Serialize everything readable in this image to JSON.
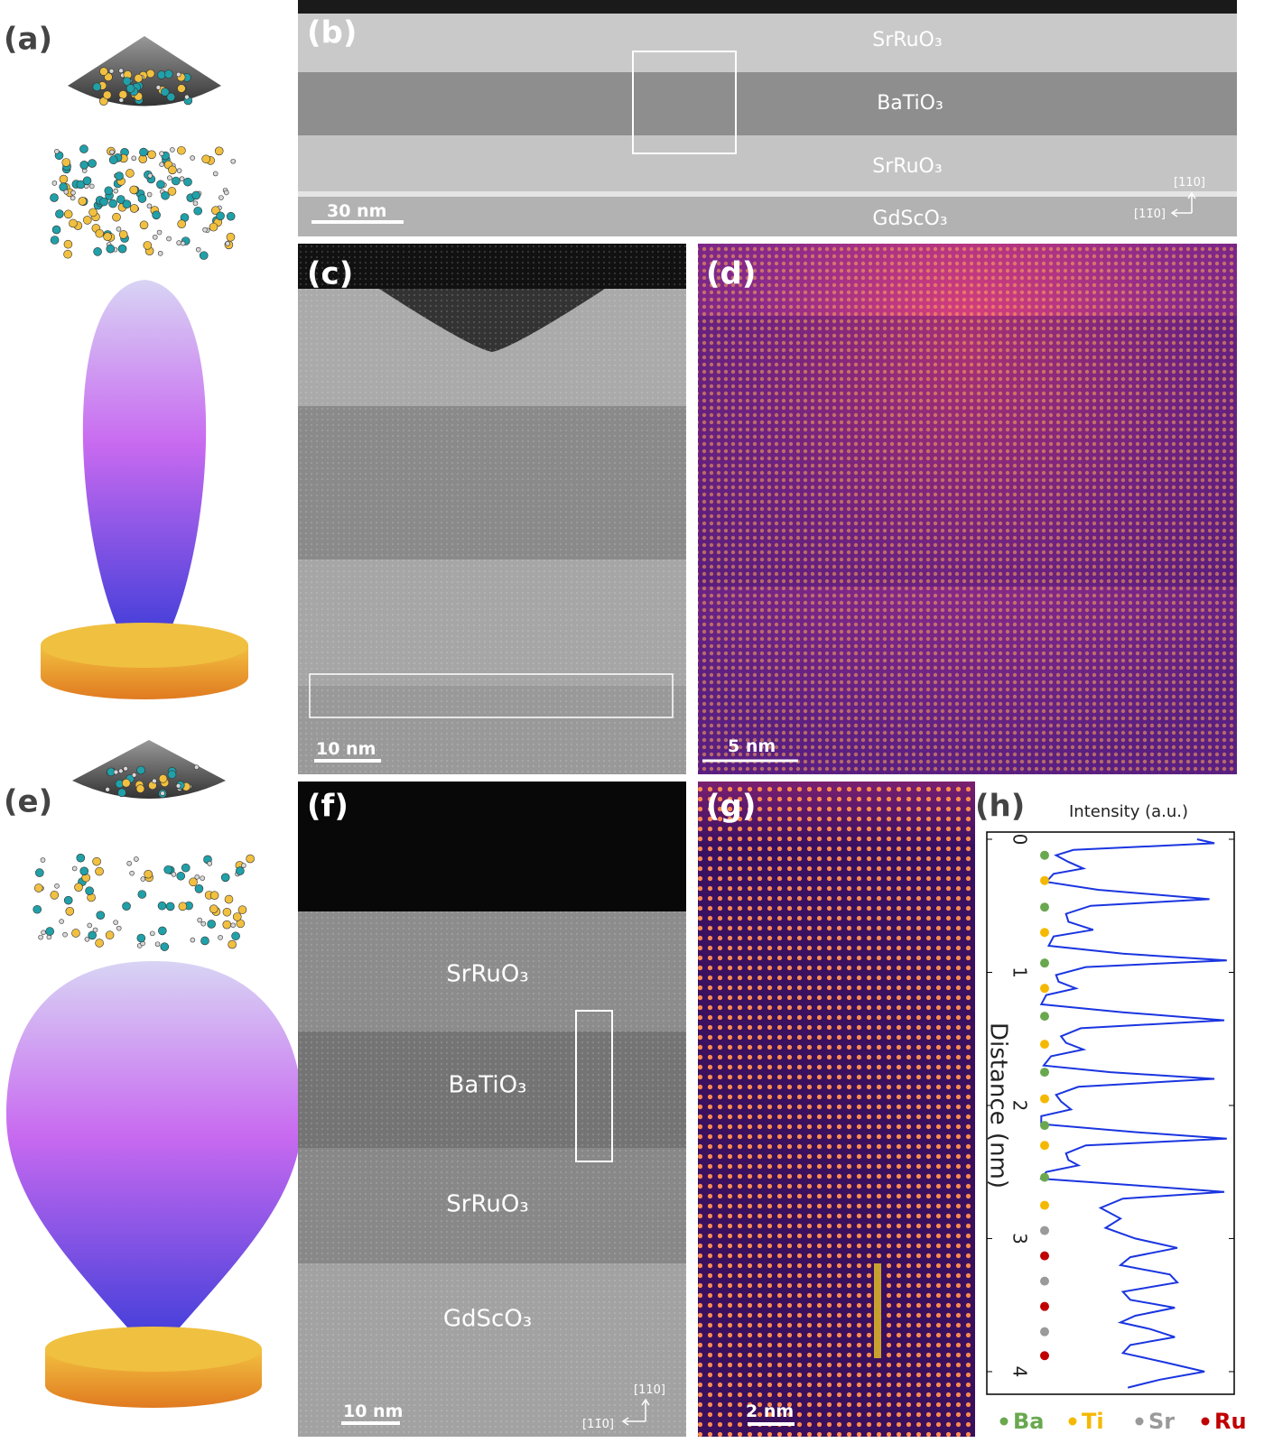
{
  "labels": {
    "a": "(a)",
    "b": "(b)",
    "c": "(c)",
    "d": "(d)",
    "e": "(e)",
    "f": "(f)",
    "g": "(g)",
    "h": "(h)"
  },
  "panel_b": {
    "layers": [
      "SrRuO₃",
      "BaTiO₃",
      "SrRuO₃",
      "GdScO₃"
    ],
    "scale_bar": "30 nm",
    "directions": [
      "[110]",
      "[11̄0]"
    ]
  },
  "panel_c": {
    "scale_bar": "10 nm"
  },
  "panel_d": {
    "scale_bar": "5 nm"
  },
  "panel_f": {
    "layers": [
      "SrRuO₃",
      "BaTiO₃",
      "SrRuO₃",
      "GdScO₃"
    ],
    "scale_bar": "10 nm",
    "directions": [
      "[110]",
      "[11̄0]"
    ]
  },
  "panel_g": {
    "scale_bar": "2 nm"
  },
  "chart_data": {
    "type": "line",
    "title": "Intensity (a.u.)",
    "axis_label": "Distance (nm)",
    "x": [
      0,
      0.03,
      0.08,
      0.12,
      0.17,
      0.22,
      0.26,
      0.32,
      0.38,
      0.45,
      0.5,
      0.56,
      0.62,
      0.68,
      0.73,
      0.8,
      0.86,
      0.91,
      0.96,
      1.02,
      1.07,
      1.12,
      1.17,
      1.24,
      1.3,
      1.36,
      1.42,
      1.48,
      1.53,
      1.58,
      1.63,
      1.7,
      1.75,
      1.8,
      1.86,
      1.92,
      1.97,
      2.03,
      2.08,
      2.14,
      2.2,
      2.25,
      2.3,
      2.36,
      2.41,
      2.45,
      2.5,
      2.55,
      2.6,
      2.65,
      2.7,
      2.77,
      2.85,
      2.92,
      3.0,
      3.07,
      3.14,
      3.2,
      3.27,
      3.33,
      3.4,
      3.46,
      3.52,
      3.58,
      3.63,
      3.68,
      3.74,
      3.8,
      3.86,
      3.93,
      4.0,
      4.06,
      4.12
    ],
    "values": [
      0.85,
      0.92,
      0.35,
      0.28,
      0.33,
      0.39,
      0.27,
      0.24,
      0.45,
      0.9,
      0.42,
      0.32,
      0.33,
      0.43,
      0.27,
      0.25,
      0.55,
      0.97,
      0.4,
      0.28,
      0.29,
      0.36,
      0.24,
      0.22,
      0.55,
      0.96,
      0.38,
      0.3,
      0.32,
      0.39,
      0.26,
      0.23,
      0.5,
      0.92,
      0.37,
      0.28,
      0.3,
      0.34,
      0.22,
      0.22,
      0.6,
      0.97,
      0.4,
      0.32,
      0.33,
      0.37,
      0.24,
      0.22,
      0.6,
      0.96,
      0.55,
      0.46,
      0.54,
      0.48,
      0.6,
      0.77,
      0.58,
      0.54,
      0.74,
      0.77,
      0.55,
      0.58,
      0.76,
      0.6,
      0.54,
      0.66,
      0.76,
      0.58,
      0.55,
      0.72,
      0.88,
      0.7,
      0.57
    ],
    "color": "#1a35e0",
    "xlim": [
      0,
      4.17
    ],
    "xticks": [
      0,
      1,
      2,
      3,
      4
    ],
    "ylim": [
      0,
      1
    ],
    "atoms": {
      "positions": [
        0.12,
        0.31,
        0.51,
        0.7,
        0.93,
        1.12,
        1.33,
        1.54,
        1.75,
        1.95,
        2.15,
        2.3,
        2.54,
        2.75,
        2.94,
        3.13,
        3.32,
        3.51,
        3.7,
        3.88
      ],
      "elements": [
        0,
        1,
        0,
        1,
        0,
        1,
        0,
        1,
        0,
        1,
        0,
        1,
        0,
        1,
        2,
        3,
        2,
        3,
        2,
        3
      ]
    },
    "legend": [
      {
        "name": "Ba",
        "color": "#6aa84f"
      },
      {
        "name": "Ti",
        "color": "#f5b800"
      },
      {
        "name": "Sr",
        "color": "#9a9a9a"
      },
      {
        "name": "Ru",
        "color": "#c00000"
      }
    ]
  }
}
